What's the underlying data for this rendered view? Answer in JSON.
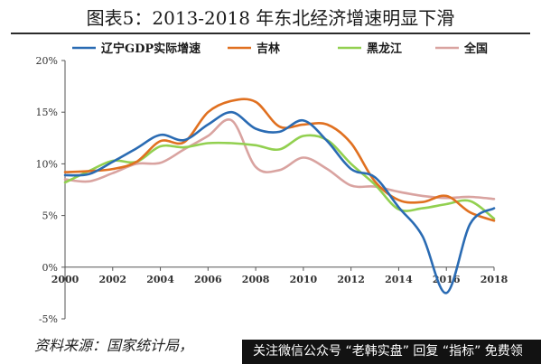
{
  "title": "图表5：2013-2018 年东北经济增速明显下滑",
  "source_label": "资料来源：国家统计局，",
  "overlay_text": "关注微信公众号 “老韩实盘” 回复 “指标” 免费领",
  "chart_data": {
    "type": "line",
    "title": "图表5：2013-2018 年东北经济增速明显下滑",
    "xlabel": "",
    "ylabel": "",
    "xlim": [
      2000,
      2018
    ],
    "ylim": [
      -5,
      20
    ],
    "x_ticks": [
      2000,
      2002,
      2004,
      2006,
      2008,
      2010,
      2012,
      2014,
      2016,
      2018
    ],
    "y_ticks": [
      -5,
      0,
      5,
      10,
      15,
      20
    ],
    "y_tick_labels": [
      "-5%",
      "0%",
      "5%",
      "10%",
      "15%",
      "20%"
    ],
    "grid": false,
    "legend_position": "top",
    "series": [
      {
        "name": "辽宁GDP实际增速",
        "color": "#2a6bb3",
        "x": [
          2000,
          2001,
          2002,
          2003,
          2004,
          2005,
          2006,
          2007,
          2008,
          2009,
          2010,
          2011,
          2012,
          2013,
          2014,
          2015,
          2016,
          2017,
          2018
        ],
        "values": [
          8.9,
          9.0,
          10.2,
          11.5,
          12.8,
          12.3,
          13.8,
          15.0,
          13.4,
          13.1,
          14.2,
          12.2,
          9.5,
          8.7,
          5.8,
          3.0,
          -2.5,
          4.2,
          5.7
        ]
      },
      {
        "name": "吉林",
        "color": "#e07020",
        "x": [
          2000,
          2001,
          2002,
          2003,
          2004,
          2005,
          2006,
          2007,
          2008,
          2009,
          2010,
          2011,
          2012,
          2013,
          2014,
          2015,
          2016,
          2017,
          2018
        ],
        "values": [
          9.2,
          9.3,
          9.5,
          10.2,
          12.2,
          12.1,
          15.0,
          16.1,
          16.0,
          13.6,
          13.8,
          13.8,
          12.0,
          8.3,
          6.5,
          6.3,
          6.9,
          5.3,
          4.5
        ]
      },
      {
        "name": "黑龙江",
        "color": "#92d050",
        "x": [
          2000,
          2001,
          2002,
          2003,
          2004,
          2005,
          2006,
          2007,
          2008,
          2009,
          2010,
          2011,
          2012,
          2013,
          2014,
          2015,
          2016,
          2017,
          2018
        ],
        "values": [
          8.2,
          9.3,
          10.3,
          10.2,
          11.7,
          11.6,
          12.0,
          12.0,
          11.8,
          11.4,
          12.7,
          12.3,
          10.0,
          8.0,
          5.6,
          5.7,
          6.1,
          6.4,
          4.7
        ]
      },
      {
        "name": "全国",
        "color": "#d9a3a0",
        "x": [
          2000,
          2001,
          2002,
          2003,
          2004,
          2005,
          2006,
          2007,
          2008,
          2009,
          2010,
          2011,
          2012,
          2013,
          2014,
          2015,
          2016,
          2017,
          2018
        ],
        "values": [
          8.5,
          8.3,
          9.1,
          10.0,
          10.1,
          11.4,
          12.7,
          14.2,
          9.7,
          9.4,
          10.6,
          9.5,
          7.9,
          7.8,
          7.3,
          6.9,
          6.7,
          6.8,
          6.6
        ]
      }
    ]
  }
}
